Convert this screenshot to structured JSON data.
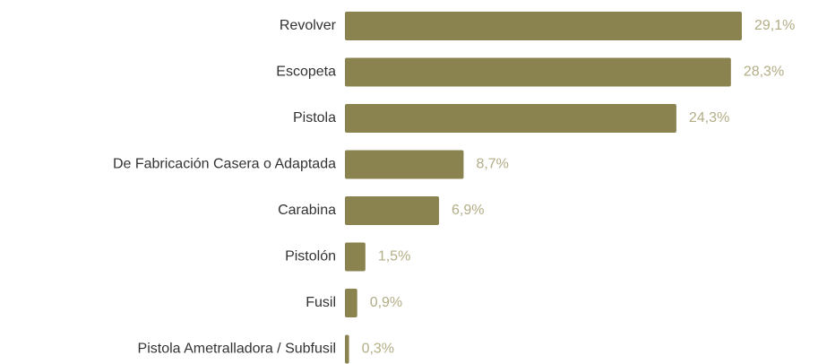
{
  "chart_data": {
    "type": "bar",
    "orientation": "horizontal",
    "categories": [
      "Revolver",
      "Escopeta",
      "Pistola",
      "De Fabricación Casera o Adaptada",
      "Carabina",
      "Pistolón",
      "Fusil",
      "Pistola Ametralladora / Subfusil"
    ],
    "values": [
      29.1,
      28.3,
      24.3,
      8.7,
      6.9,
      1.5,
      0.9,
      0.3
    ],
    "value_labels": [
      "29,1%",
      "28,3%",
      "24,3%",
      "8,7%",
      "6,9%",
      "1,5%",
      "0,9%",
      "0,3%"
    ],
    "color": "#8a8350",
    "label_color": "#b3ad86"
  }
}
